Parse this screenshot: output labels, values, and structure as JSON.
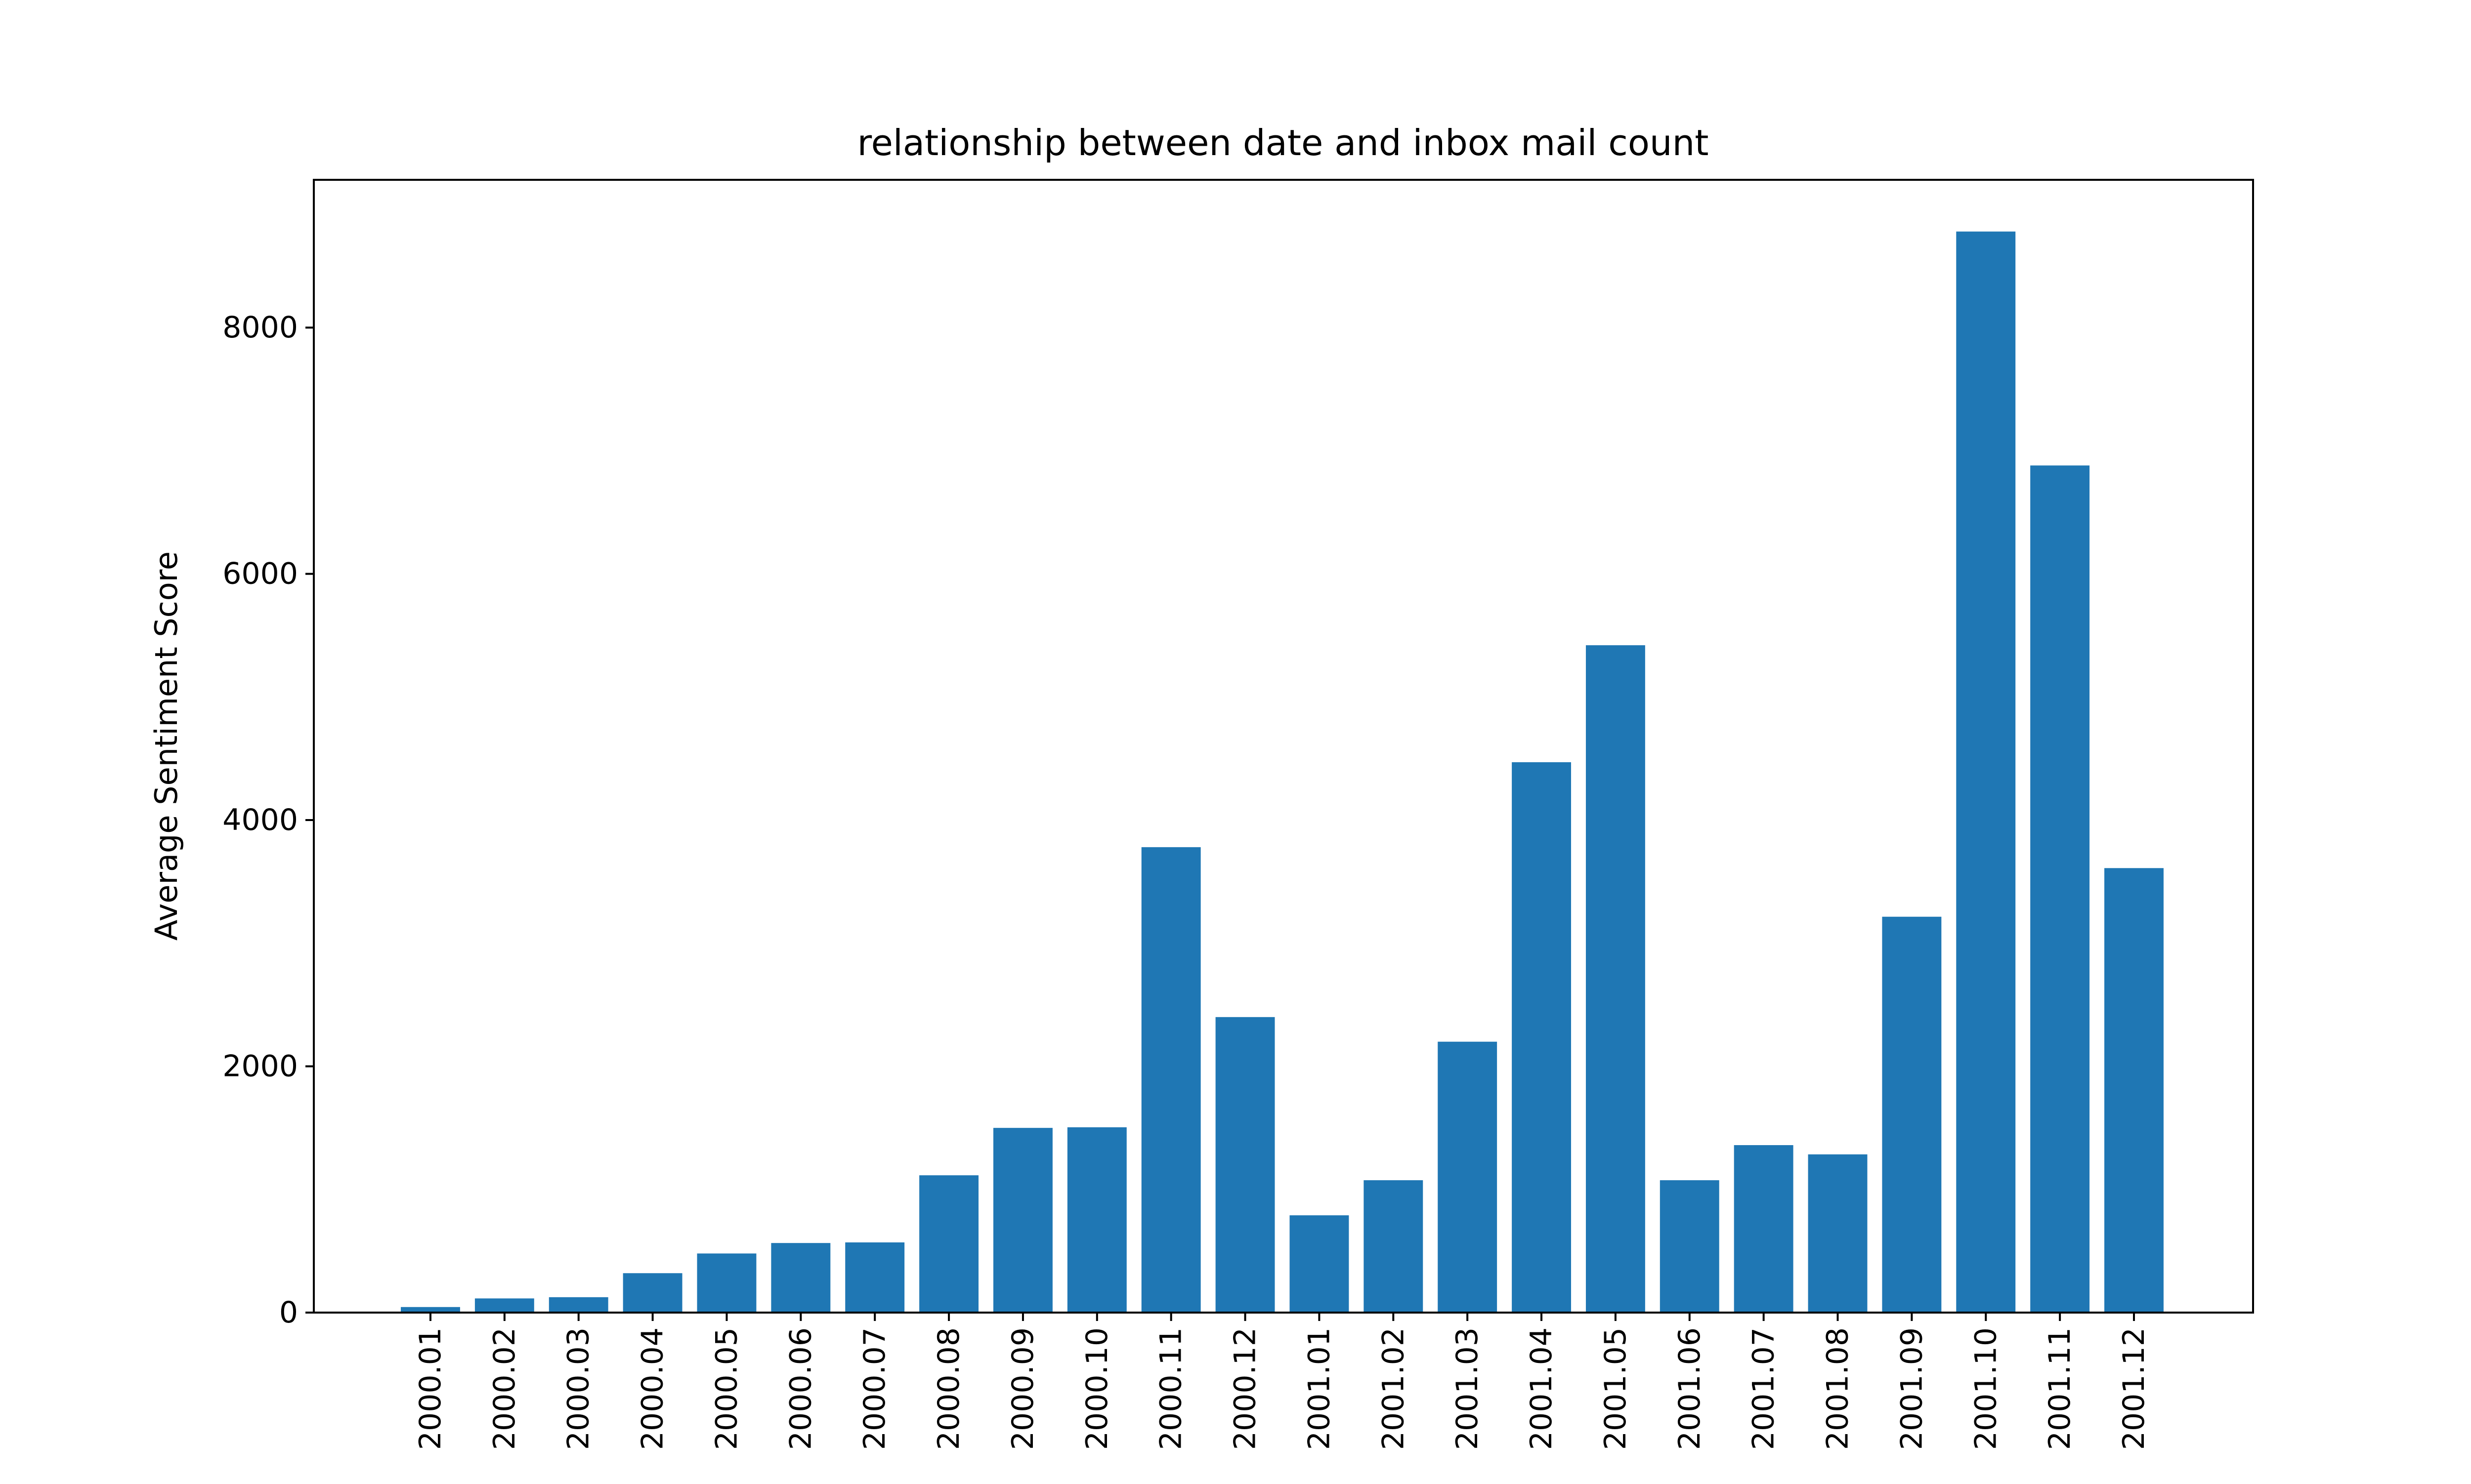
{
  "chart_data": {
    "type": "bar",
    "title": "relationship between date and inbox mail count",
    "xlabel": "",
    "ylabel": "Average Sentiment Score",
    "categories": [
      "2000.01",
      "2000.02",
      "2000.03",
      "2000.04",
      "2000.05",
      "2000.06",
      "2000.07",
      "2000.08",
      "2000.09",
      "2000.10",
      "2000.11",
      "2000.12",
      "2001.01",
      "2001.02",
      "2001.03",
      "2001.04",
      "2001.05",
      "2001.06",
      "2001.07",
      "2001.08",
      "2001.09",
      "2001.10",
      "2001.11",
      "2001.12"
    ],
    "values": [
      45,
      115,
      125,
      320,
      480,
      565,
      570,
      1115,
      1500,
      1505,
      3780,
      2400,
      790,
      1075,
      2200,
      4470,
      5420,
      1075,
      1360,
      1285,
      3215,
      8780,
      6880,
      3610
    ],
    "ylim": [
      0,
      9200
    ],
    "yticks": [
      0,
      2000,
      4000,
      6000,
      8000
    ],
    "ytick_labels": [
      "0",
      "2000",
      "4000",
      "6000",
      "8000"
    ],
    "grid": false,
    "bar_color": "#1f77b4",
    "rotate_x_ticks": true
  }
}
